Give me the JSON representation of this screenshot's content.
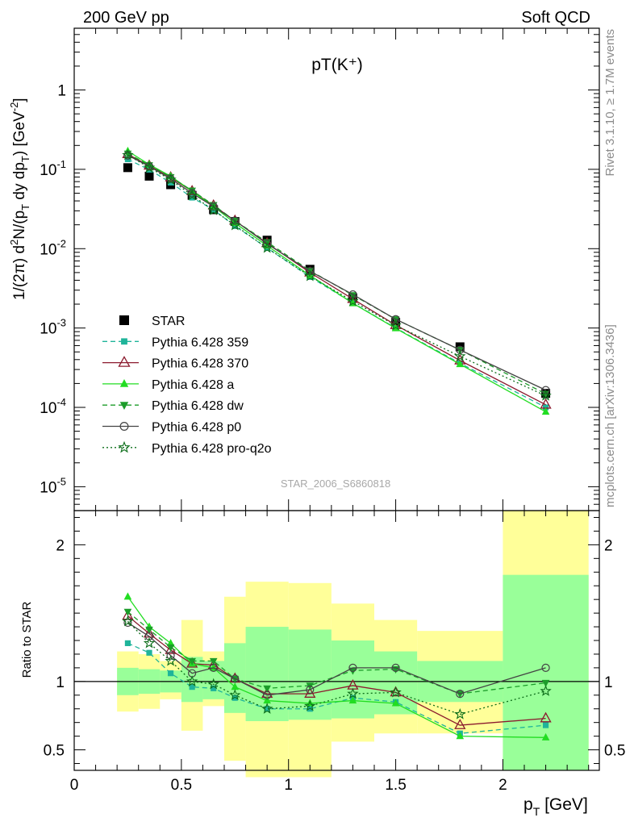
{
  "header": {
    "left": "200 GeV pp",
    "right": "Soft QCD"
  },
  "side_labels": {
    "rivet": "Rivet 3.1.10, ≥ 1.7M events",
    "mcplots": "mcplots.cern.ch [arXiv:1306.3436]"
  },
  "watermark": "STAR_2006_S6860818",
  "chart_data": [
    {
      "type": "scatter",
      "title": "pT(K⁺)",
      "ylabel": "1/(2π) d²N/(p_T dy dp_T) [GeV⁻²]",
      "yscale": "log",
      "xlim": [
        0,
        2.45
      ],
      "ylim": [
        5e-06,
        6
      ],
      "yticks": [
        "10^-5",
        "10^-4",
        "10^-3",
        "10^-2",
        "10^-1",
        "1"
      ],
      "x": [
        0.25,
        0.35,
        0.45,
        0.55,
        0.65,
        0.75,
        0.9,
        1.1,
        1.3,
        1.5,
        1.8,
        2.2
      ],
      "legend_position": "left",
      "series": [
        {
          "name": "STAR",
          "color": "#000000",
          "marker": "square-filled",
          "line": "none",
          "values": [
            0.105,
            0.082,
            0.064,
            0.047,
            0.031,
            0.022,
            0.0128,
            0.0055,
            0.0024,
            0.00118,
            0.00058,
            0.00015
          ]
        },
        {
          "name": "Pythia 6.428 359",
          "color": "#1fb49a",
          "marker": "square-small",
          "line": "dashed",
          "values": [
            0.134,
            0.099,
            0.068,
            0.044,
            0.031,
            0.0193,
            0.0102,
            0.0044,
            0.00207,
            0.001,
            0.00036,
            0.0001
          ]
        },
        {
          "name": "Pythia 6.428 370",
          "color": "#8b1a2e",
          "marker": "triangle-open",
          "line": "solid",
          "values": [
            0.155,
            0.111,
            0.079,
            0.053,
            0.035,
            0.0225,
            0.0117,
            0.005,
            0.00232,
            0.00109,
            0.00039,
            0.000108
          ]
        },
        {
          "name": "Pythia 6.428 a",
          "color": "#22dd22",
          "marker": "triangle-filled",
          "line": "solid",
          "values": [
            0.17,
            0.115,
            0.082,
            0.053,
            0.034,
            0.021,
            0.0109,
            0.0046,
            0.00205,
            0.00099,
            0.00035,
            8.8e-05
          ]
        },
        {
          "name": "Pythia 6.428 dw",
          "color": "#1c9c2a",
          "marker": "triangle-down-filled",
          "line": "dashed",
          "values": [
            0.158,
            0.113,
            0.08,
            0.054,
            0.0355,
            0.0225,
            0.0121,
            0.0053,
            0.0026,
            0.00129,
            0.00053,
            0.000148
          ]
        },
        {
          "name": "Pythia 6.428 p0",
          "color": "#444444",
          "marker": "circle-open",
          "line": "solid",
          "values": [
            0.15,
            0.109,
            0.076,
            0.05,
            0.034,
            0.0225,
            0.0115,
            0.0052,
            0.00265,
            0.00129,
            0.00053,
            0.000165
          ]
        },
        {
          "name": "Pythia 6.428 pro-q2o",
          "color": "#0d6e1a",
          "marker": "star-open",
          "line": "dotted",
          "values": [
            0.151,
            0.105,
            0.074,
            0.047,
            0.0305,
            0.0197,
            0.0102,
            0.0045,
            0.00218,
            0.00108,
            0.00044,
            0.00014
          ]
        }
      ]
    },
    {
      "type": "line",
      "ylabel": "Ratio to STAR",
      "xlabel": "p_T [GeV]",
      "xlim": [
        0,
        2.45
      ],
      "ylim": [
        0.35,
        2.25
      ],
      "xticks": [
        "0",
        "0.5",
        "1",
        "1.5",
        "2"
      ],
      "yticks": [
        "0.5",
        "1",
        "2"
      ],
      "reference_line": 1,
      "uncertainty_bands": [
        {
          "x0": 0.2,
          "x1": 0.3,
          "stat_low": 0.9,
          "stat_high": 1.1,
          "total_low": 0.78,
          "total_high": 1.22
        },
        {
          "x0": 0.3,
          "x1": 0.4,
          "stat_low": 0.91,
          "stat_high": 1.09,
          "total_low": 0.8,
          "total_high": 1.2
        },
        {
          "x0": 0.4,
          "x1": 0.5,
          "stat_low": 0.92,
          "stat_high": 1.08,
          "total_low": 0.87,
          "total_high": 1.15
        },
        {
          "x0": 0.5,
          "x1": 0.6,
          "stat_low": 0.85,
          "stat_high": 1.18,
          "total_low": 0.64,
          "total_high": 1.45
        },
        {
          "x0": 0.6,
          "x1": 0.7,
          "stat_low": 0.87,
          "stat_high": 1.15,
          "total_low": 0.82,
          "total_high": 1.22
        },
        {
          "x0": 0.7,
          "x1": 0.8,
          "stat_low": 0.77,
          "stat_high": 1.28,
          "total_low": 0.42,
          "total_high": 1.62
        },
        {
          "x0": 0.8,
          "x1": 1.0,
          "stat_low": 0.71,
          "stat_high": 1.4,
          "total_low": 0.3,
          "total_high": 1.73
        },
        {
          "x0": 1.0,
          "x1": 1.2,
          "stat_low": 0.72,
          "stat_high": 1.38,
          "total_low": 0.3,
          "total_high": 1.72
        },
        {
          "x0": 1.2,
          "x1": 1.4,
          "stat_low": 0.73,
          "stat_high": 1.3,
          "total_low": 0.56,
          "total_high": 1.57
        },
        {
          "x0": 1.4,
          "x1": 1.6,
          "stat_low": 0.76,
          "stat_high": 1.22,
          "total_low": 0.62,
          "total_high": 1.45
        },
        {
          "x0": 1.6,
          "x1": 2.0,
          "stat_low": 0.85,
          "stat_high": 1.15,
          "total_low": 0.62,
          "total_high": 1.37
        },
        {
          "x0": 2.0,
          "x1": 2.4,
          "stat_low": 0.35,
          "stat_high": 1.78,
          "total_low": 0.35,
          "total_high": 2.25
        }
      ],
      "x": [
        0.25,
        0.35,
        0.45,
        0.55,
        0.65,
        0.75,
        0.9,
        1.1,
        1.3,
        1.5,
        1.8,
        2.2
      ],
      "series": [
        {
          "name": "Pythia 6.428 359",
          "values": [
            1.28,
            1.21,
            1.06,
            0.96,
            0.95,
            0.88,
            0.8,
            0.8,
            0.88,
            0.85,
            0.62,
            0.68
          ]
        },
        {
          "name": "Pythia 6.428 370",
          "values": [
            1.48,
            1.35,
            1.23,
            1.13,
            1.12,
            1.02,
            0.91,
            0.91,
            0.97,
            0.92,
            0.68,
            0.73
          ]
        },
        {
          "name": "Pythia 6.428 a",
          "values": [
            1.62,
            1.4,
            1.28,
            1.13,
            1.1,
            0.96,
            0.86,
            0.84,
            0.86,
            0.84,
            0.6,
            0.59
          ]
        },
        {
          "name": "Pythia 6.428 dw",
          "values": [
            1.51,
            1.38,
            1.25,
            1.15,
            1.15,
            1.02,
            0.95,
            0.97,
            1.08,
            1.09,
            0.91,
            0.99
          ]
        },
        {
          "name": "Pythia 6.428 p0",
          "values": [
            1.43,
            1.33,
            1.19,
            1.06,
            1.1,
            1.02,
            0.9,
            0.94,
            1.1,
            1.1,
            0.91,
            1.1
          ]
        },
        {
          "name": "Pythia 6.428 pro-q2o",
          "values": [
            1.44,
            1.28,
            1.15,
            1.0,
            0.98,
            0.9,
            0.8,
            0.82,
            0.91,
            0.92,
            0.76,
            0.93
          ]
        }
      ]
    }
  ]
}
